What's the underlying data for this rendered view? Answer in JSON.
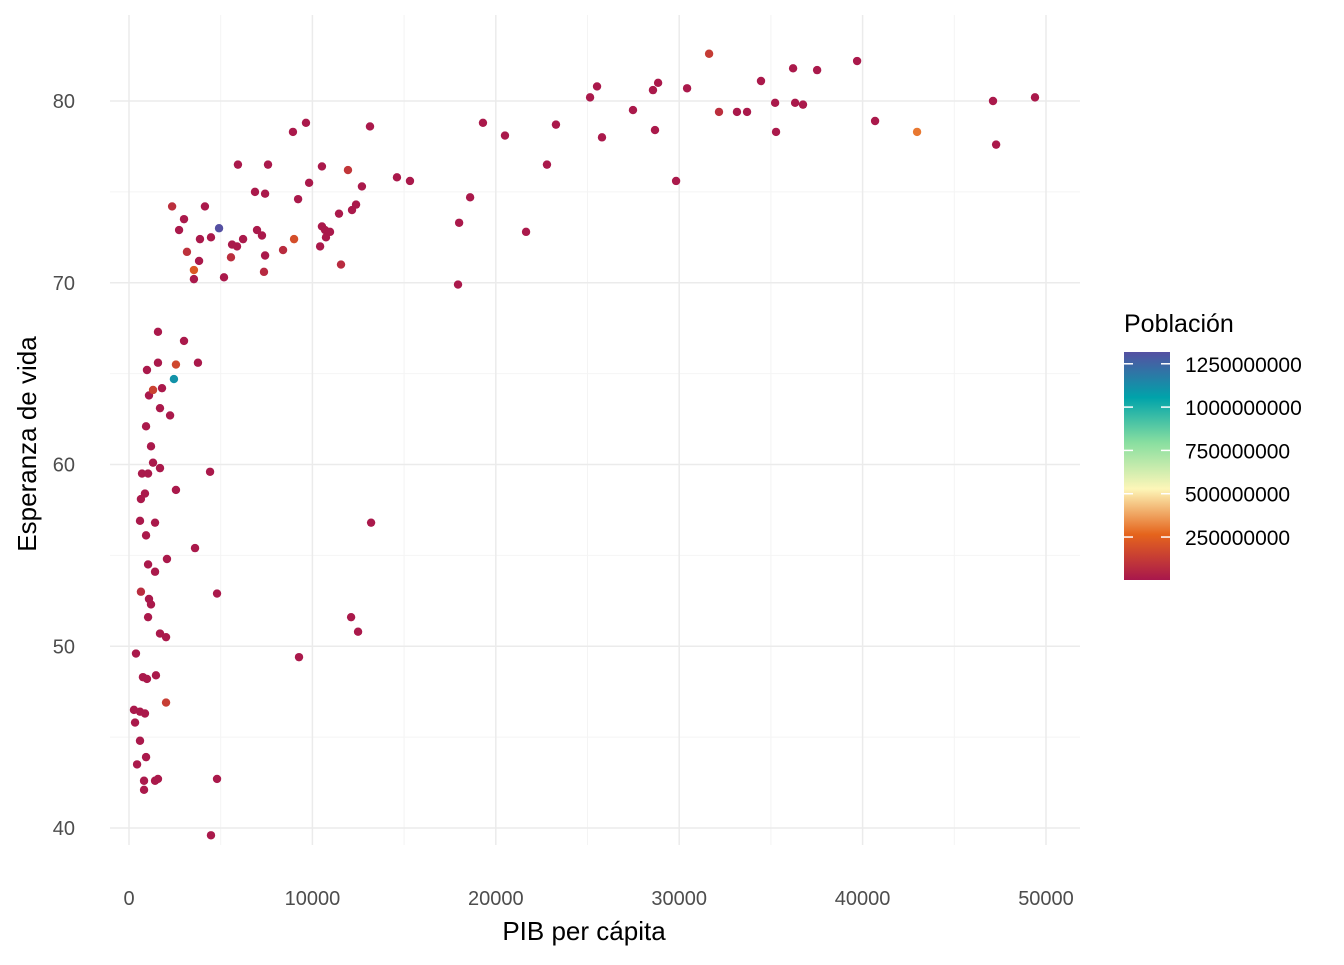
{
  "chart_data": {
    "type": "scatter",
    "title": "",
    "xlabel": "PIB per cápita",
    "ylabel": "Esperanza de vida",
    "xlim": [
      -1000,
      51800
    ],
    "ylim": [
      37.4,
      84.7
    ],
    "xticks": [
      0,
      10000,
      20000,
      30000,
      40000,
      50000
    ],
    "xtick_labels": [
      "0",
      "10000",
      "20000",
      "30000",
      "40000",
      "50000"
    ],
    "yticks": [
      40,
      50,
      60,
      70,
      80
    ],
    "ytick_labels": [
      "40",
      "50",
      "60",
      "70",
      "80"
    ],
    "grid": true,
    "legend": {
      "title": "Población",
      "placement": "right",
      "type": "colorbar",
      "range": [
        2000000,
        1318000000
      ],
      "ticks": [
        250000000,
        500000000,
        750000000,
        1000000000,
        1250000000
      ],
      "tick_labels": [
        "250000000",
        "500000000",
        "750000000",
        "1000000000",
        "1250000000"
      ],
      "colors": [
        "#A8174C",
        "#E5641C",
        "#FDF6B8",
        "#8ADFA0",
        "#00A3AA",
        "#5550A2"
      ]
    },
    "points": [
      [
        31630,
        82.6,
        127000000
      ],
      [
        39700,
        82.2,
        10000000
      ],
      [
        36210,
        81.8,
        10000000
      ],
      [
        37520,
        81.7,
        10000000
      ],
      [
        25520,
        80.8,
        10000000
      ],
      [
        28850,
        81.0,
        10000000
      ],
      [
        34460,
        81.1,
        10000000
      ],
      [
        30430,
        80.7,
        10000000
      ],
      [
        28570,
        80.6,
        10000000
      ],
      [
        25140,
        80.2,
        10000000
      ],
      [
        49400,
        80.2,
        10000000
      ],
      [
        47110,
        80.0,
        10000000
      ],
      [
        27480,
        79.5,
        10000000
      ],
      [
        32170,
        79.4,
        82000000
      ],
      [
        33150,
        79.4,
        10000000
      ],
      [
        33700,
        79.4,
        10000000
      ],
      [
        36320,
        79.9,
        10000000
      ],
      [
        35230,
        79.9,
        10000000
      ],
      [
        36750,
        79.8,
        10000000
      ],
      [
        40680,
        78.9,
        10000000
      ],
      [
        19300,
        78.8,
        10000000
      ],
      [
        23280,
        78.7,
        10000000
      ],
      [
        13140,
        78.6,
        10000000
      ],
      [
        9650,
        78.8,
        10000000
      ],
      [
        8940,
        78.3,
        10000000
      ],
      [
        28680,
        78.4,
        10000000
      ],
      [
        42970,
        78.3,
        301000000
      ],
      [
        35280,
        78.3,
        10000000
      ],
      [
        25790,
        78.0,
        10000000
      ],
      [
        47280,
        77.6,
        10000000
      ],
      [
        20500,
        78.1,
        10000000
      ],
      [
        5940,
        76.5,
        10000000
      ],
      [
        7580,
        76.5,
        10000000
      ],
      [
        10520,
        76.4,
        10000000
      ],
      [
        11940,
        76.2,
        108000000
      ],
      [
        22790,
        76.5,
        10000000
      ],
      [
        29830,
        75.6,
        10000000
      ],
      [
        14610,
        75.8,
        10000000
      ],
      [
        15320,
        75.6,
        10000000
      ],
      [
        12700,
        75.3,
        10000000
      ],
      [
        9820,
        75.5,
        10000000
      ],
      [
        6870,
        75.0,
        10000000
      ],
      [
        7420,
        74.9,
        10000000
      ],
      [
        18600,
        74.7,
        10000000
      ],
      [
        2350,
        74.2,
        85000000
      ],
      [
        4140,
        74.2,
        10000000
      ],
      [
        9220,
        74.6,
        10000000
      ],
      [
        12380,
        74.3,
        10000000
      ],
      [
        12160,
        74.0,
        10000000
      ],
      [
        11450,
        73.8,
        10000000
      ],
      [
        18000,
        73.3,
        10000000
      ],
      [
        3000,
        73.5,
        10000000
      ],
      [
        10520,
        73.1,
        10000000
      ],
      [
        10690,
        72.9,
        10000000
      ],
      [
        10960,
        72.8,
        10000000
      ],
      [
        10420,
        72.0,
        10000000
      ],
      [
        10740,
        72.5,
        10000000
      ],
      [
        4910,
        73.0,
        1318000000
      ],
      [
        2730,
        72.9,
        10000000
      ],
      [
        6980,
        72.9,
        10000000
      ],
      [
        7250,
        72.6,
        10000000
      ],
      [
        4470,
        72.5,
        10000000
      ],
      [
        3870,
        72.4,
        10000000
      ],
      [
        5890,
        72.0,
        10000000
      ],
      [
        6220,
        72.4,
        10000000
      ],
      [
        5620,
        72.1,
        10000000
      ],
      [
        21650,
        72.8,
        10000000
      ],
      [
        3160,
        71.7,
        91000000
      ],
      [
        8400,
        71.8,
        71000000
      ],
      [
        3820,
        71.2,
        10000000
      ],
      [
        5560,
        71.4,
        80000000
      ],
      [
        7420,
        71.5,
        10000000
      ],
      [
        11560,
        71.0,
        69000000
      ],
      [
        9000,
        72.4,
        190000000
      ],
      [
        3540,
        70.7,
        224000000
      ],
      [
        7360,
        70.6,
        65000000
      ],
      [
        5180,
        70.3,
        10000000
      ],
      [
        3540,
        70.2,
        10000000
      ],
      [
        17940,
        69.9,
        10000000
      ],
      [
        1580,
        67.3,
        10000000
      ],
      [
        3000,
        66.8,
        10000000
      ],
      [
        1580,
        65.6,
        10000000
      ],
      [
        2560,
        65.5,
        169000000
      ],
      [
        3760,
        65.6,
        10000000
      ],
      [
        2450,
        64.7,
        1110000000
      ],
      [
        980,
        65.2,
        10000000
      ],
      [
        1800,
        64.2,
        10000000
      ],
      [
        1310,
        64.1,
        150000000
      ],
      [
        1090,
        63.8,
        10000000
      ],
      [
        1690,
        63.1,
        10000000
      ],
      [
        2240,
        62.7,
        10000000
      ],
      [
        930,
        62.1,
        10000000
      ],
      [
        1200,
        61.0,
        10000000
      ],
      [
        1310,
        60.1,
        10000000
      ],
      [
        1690,
        59.8,
        10000000
      ],
      [
        710,
        59.5,
        10000000
      ],
      [
        1040,
        59.5,
        10000000
      ],
      [
        4420,
        59.6,
        10000000
      ],
      [
        870,
        58.4,
        10000000
      ],
      [
        2560,
        58.6,
        10000000
      ],
      [
        650,
        58.1,
        10000000
      ],
      [
        13200,
        56.8,
        10000000
      ],
      [
        1420,
        56.8,
        10000000
      ],
      [
        600,
        56.9,
        10000000
      ],
      [
        930,
        56.1,
        10000000
      ],
      [
        3600,
        55.4,
        10000000
      ],
      [
        2070,
        54.8,
        10000000
      ],
      [
        1040,
        54.5,
        10000000
      ],
      [
        1420,
        54.1,
        10000000
      ],
      [
        650,
        53.0,
        76000000
      ],
      [
        4800,
        52.9,
        10000000
      ],
      [
        1090,
        52.6,
        10000000
      ],
      [
        1200,
        52.3,
        10000000
      ],
      [
        12110,
        51.6,
        10000000
      ],
      [
        1040,
        51.6,
        10000000
      ],
      [
        12490,
        50.8,
        10000000
      ],
      [
        1690,
        50.7,
        10000000
      ],
      [
        2020,
        50.5,
        10000000
      ],
      [
        380,
        49.6,
        10000000
      ],
      [
        9270,
        49.4,
        10000000
      ],
      [
        760,
        48.3,
        10000000
      ],
      [
        980,
        48.2,
        10000000
      ],
      [
        1470,
        48.4,
        10000000
      ],
      [
        2020,
        46.9,
        135000000
      ],
      [
        270,
        46.5,
        10000000
      ],
      [
        600,
        46.4,
        10000000
      ],
      [
        870,
        46.3,
        10000000
      ],
      [
        330,
        45.8,
        10000000
      ],
      [
        600,
        44.8,
        10000000
      ],
      [
        930,
        43.9,
        10000000
      ],
      [
        440,
        43.5,
        10000000
      ],
      [
        4800,
        42.7,
        10000000
      ],
      [
        820,
        42.6,
        10000000
      ],
      [
        1420,
        42.6,
        10000000
      ],
      [
        1580,
        42.7,
        10000000
      ],
      [
        820,
        42.1,
        10000000
      ],
      [
        4470,
        39.6,
        10000000
      ]
    ]
  }
}
